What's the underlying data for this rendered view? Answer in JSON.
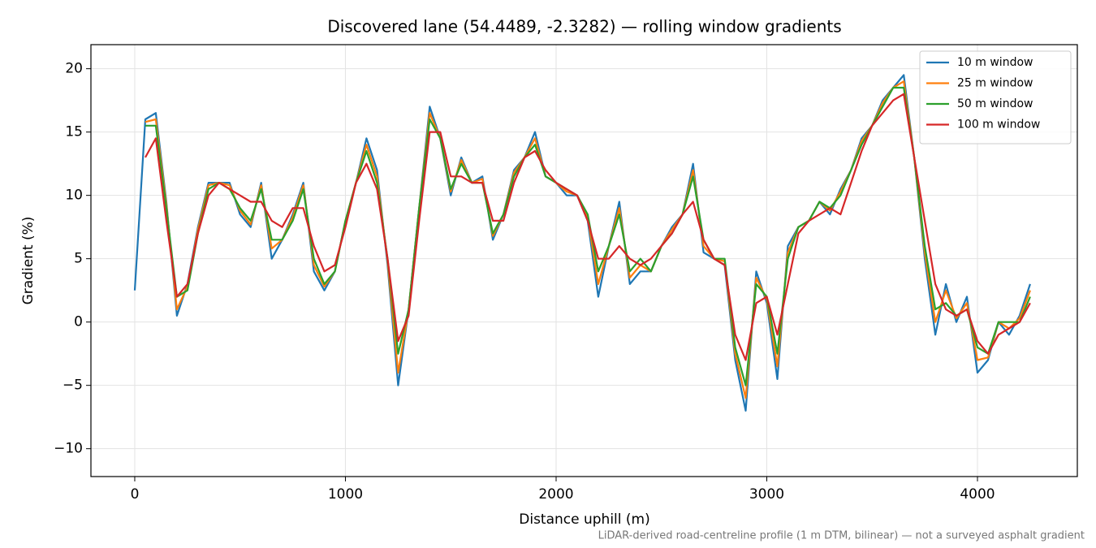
{
  "chart_data": {
    "type": "line",
    "title": "Discovered lane (54.4489, -2.3282) — rolling window gradients",
    "xlabel": "Distance uphill (m)",
    "ylabel": "Gradient (%)",
    "footnote": "LiDAR-derived road-centreline profile (1 m DTM, bilinear) — not a surveyed asphalt gradient",
    "x": [
      0,
      50,
      100,
      150,
      200,
      250,
      300,
      350,
      400,
      450,
      500,
      550,
      600,
      650,
      700,
      750,
      800,
      850,
      900,
      950,
      1000,
      1050,
      1100,
      1150,
      1200,
      1250,
      1300,
      1350,
      1400,
      1450,
      1500,
      1550,
      1600,
      1650,
      1700,
      1750,
      1800,
      1850,
      1900,
      1950,
      2000,
      2050,
      2100,
      2150,
      2200,
      2250,
      2300,
      2350,
      2400,
      2450,
      2500,
      2550,
      2600,
      2650,
      2700,
      2750,
      2800,
      2850,
      2900,
      2950,
      3000,
      3050,
      3100,
      3150,
      3200,
      3250,
      3300,
      3350,
      3400,
      3450,
      3500,
      3550,
      3600,
      3650,
      3700,
      3750,
      3800,
      3850,
      3900,
      3950,
      4000,
      4050,
      4100,
      4150,
      4200,
      4250
    ],
    "series": [
      {
        "name": "10 m window",
        "color": "#1f77b4",
        "values": [
          2.5,
          16,
          16.5,
          9.5,
          0.5,
          3,
          7.5,
          11,
          11,
          11,
          8.5,
          7.5,
          11,
          5,
          6.5,
          8.5,
          11,
          4,
          2.5,
          4,
          8,
          11,
          14.5,
          12,
          4.5,
          -5,
          1,
          9,
          17,
          14.5,
          10,
          13,
          11,
          11.5,
          6.5,
          8.5,
          12,
          13,
          15,
          11.5,
          11,
          10,
          10,
          8,
          2,
          6,
          9.5,
          3,
          4,
          4,
          6,
          7.5,
          8.5,
          12.5,
          5.5,
          5,
          4.5,
          -3,
          -7,
          4,
          1.5,
          -4.5,
          6,
          7.5,
          8,
          9.5,
          8.5,
          10.5,
          12,
          14.5,
          15.5,
          17.5,
          18.5,
          19.5,
          13,
          5,
          -1,
          3,
          0,
          2,
          -4,
          -3,
          0,
          -1,
          0.5,
          3
        ]
      },
      {
        "name": "25 m window",
        "color": "#ff7f0e",
        "values": [
          null,
          15.8,
          16,
          9.3,
          1,
          2.8,
          7.3,
          10.8,
          11,
          10.8,
          8.8,
          7.7,
          10.8,
          5.8,
          6.5,
          8.3,
          10.8,
          4.5,
          2.8,
          4,
          8,
          11,
          14,
          11.5,
          4.8,
          -4,
          1,
          9,
          16.5,
          14.5,
          10.3,
          12.8,
          11,
          11.3,
          6.8,
          8.5,
          11.8,
          13,
          14.5,
          11.5,
          11,
          10.3,
          10,
          8.3,
          3,
          6,
          9,
          3.5,
          4.5,
          4,
          6,
          7.3,
          8.5,
          12,
          6,
          5,
          4.8,
          -2.5,
          -6,
          3.5,
          1.8,
          -3.5,
          5.5,
          7.5,
          8,
          9.5,
          8.8,
          10.3,
          12,
          14.3,
          15.5,
          17.3,
          18.5,
          19,
          13,
          5.5,
          0,
          2.5,
          0.3,
          1.5,
          -3,
          -2.8,
          0,
          -0.5,
          0.3,
          2.5
        ]
      },
      {
        "name": "50 m window",
        "color": "#2ca02c",
        "values": [
          null,
          15.5,
          15.5,
          9,
          2,
          2.5,
          7,
          10.5,
          11,
          10.5,
          9,
          8,
          10.5,
          6.5,
          6.5,
          8,
          10.5,
          5,
          3,
          4,
          8,
          11,
          13.5,
          11,
          5,
          -2.5,
          1,
          9,
          16,
          14.5,
          10.5,
          12.5,
          11,
          11,
          7,
          8.5,
          11.5,
          13,
          14,
          11.5,
          11,
          10.5,
          10,
          8.5,
          4,
          6,
          8.5,
          4,
          5,
          4,
          6,
          7,
          8.5,
          11.5,
          6.5,
          5,
          5,
          -2,
          -5,
          3,
          2,
          -2.5,
          5,
          7.5,
          8,
          9.5,
          9,
          10,
          12,
          14,
          15.5,
          17,
          18.5,
          18.5,
          13,
          6,
          1,
          1.5,
          0.5,
          1,
          -2,
          -2.5,
          0,
          0,
          0,
          2
        ]
      },
      {
        "name": "100 m window",
        "color": "#d62728",
        "values": [
          null,
          13,
          14.5,
          8,
          2,
          3,
          7,
          10,
          11,
          10.5,
          10,
          9.5,
          9.5,
          8,
          7.5,
          9,
          9,
          6,
          4,
          4.5,
          7.5,
          11,
          12.5,
          10.5,
          5,
          -1.5,
          0.5,
          8,
          15,
          15,
          11.5,
          11.5,
          11,
          11,
          8,
          8,
          11,
          13,
          13.5,
          12,
          11,
          10.5,
          10,
          8,
          5,
          5,
          6,
          5,
          4.5,
          5,
          6,
          7,
          8.5,
          9.5,
          6.5,
          5,
          4.5,
          -1,
          -3,
          1.5,
          2,
          -1,
          3,
          7,
          8,
          8.5,
          9,
          8.5,
          11,
          13.5,
          15.5,
          16.5,
          17.5,
          18,
          13,
          8,
          3,
          1,
          0.5,
          1,
          -1.5,
          -2.5,
          -1,
          -0.5,
          0,
          1.5
        ]
      }
    ],
    "xlim": [
      -208,
      4474
    ],
    "ylim": [
      -12.2,
      21.9
    ],
    "xticks": [
      0,
      1000,
      2000,
      3000,
      4000
    ],
    "yticks": [
      {
        "value": -10,
        "label": "−10"
      },
      {
        "value": -5,
        "label": "−5"
      },
      0,
      5,
      10,
      15,
      20
    ],
    "grid": true,
    "legend": "upper right"
  }
}
